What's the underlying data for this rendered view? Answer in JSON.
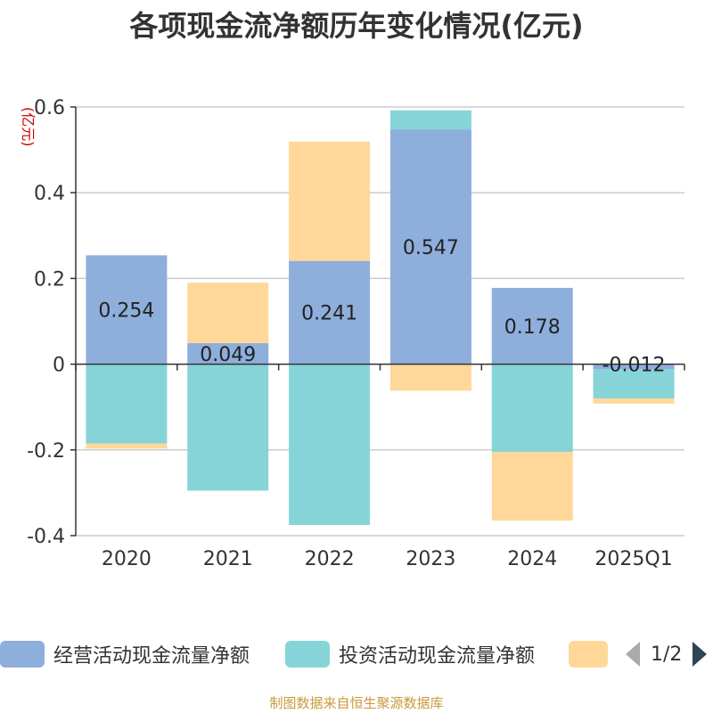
{
  "title": "各项现金流净额历年变化情况(亿元)",
  "source": "制图数据来自恒生聚源数据库",
  "legend": {
    "page": "1/2"
  },
  "colors": {
    "operating": "#8eaedb",
    "investing": "#86d4d8",
    "financing": "#ffd899",
    "axis": "#333333",
    "grid": "#cccccc",
    "unit": "#cc0000"
  },
  "chart_data": {
    "type": "bar",
    "stacked": true,
    "ylabel": "(亿元)",
    "ylim": [
      -0.4,
      0.6
    ],
    "yticks": [
      -0.4,
      -0.2,
      0,
      0.2,
      0.4,
      0.6
    ],
    "categories": [
      "2020",
      "2021",
      "2022",
      "2023",
      "2024",
      "2025Q1"
    ],
    "series": [
      {
        "name": "经营活动现金流量净额",
        "values": [
          0.254,
          0.049,
          0.241,
          0.547,
          0.178,
          -0.012
        ],
        "labels": [
          "0.254",
          "0.049",
          "0.241",
          "0.547",
          "0.178",
          "-0.012"
        ]
      },
      {
        "name": "投资活动现金流量净额",
        "values": [
          -0.185,
          -0.295,
          -0.375,
          0.045,
          -0.205,
          -0.068
        ]
      },
      {
        "name": "",
        "values": [
          -0.012,
          0.141,
          0.278,
          -0.062,
          -0.16,
          -0.012
        ]
      }
    ],
    "grid": true
  }
}
